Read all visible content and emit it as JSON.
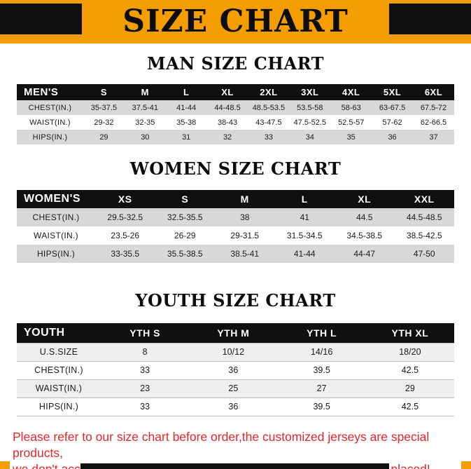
{
  "page": {
    "title": "SIZE CHART",
    "footer_line1": "Please refer to our size chart before order,the customized jerseys are special products,",
    "footer_line2": "we don't accept cancel, change, teturn or refund after order has been placed!"
  },
  "colors": {
    "accent_orange": "#F49D00",
    "header_black": "#101010",
    "row_gray": "#D8D8D8",
    "footer_red": "#E4262C"
  },
  "tables": [
    {
      "heading": "MAN SIZE CHART",
      "header": [
        "MEN'S",
        "S",
        "M",
        "L",
        "XL",
        "2XL",
        "3XL",
        "4XL",
        "5XL",
        "6XL"
      ],
      "rows": [
        [
          "CHEST(IN.)",
          "35-37.5",
          "37.5-41",
          "41-44",
          "44-48.5",
          "48.5-53.5",
          "53.5-58",
          "58-63",
          "63-67.5",
          "67.5-72"
        ],
        [
          "WAIST(IN.)",
          "29-32",
          "32-35",
          "35-38",
          "38-43",
          "43-47.5",
          "47.5-52.5",
          "52.5-57",
          "57-62",
          "62-66.5"
        ],
        [
          "HIPS(IN.)",
          "29",
          "30",
          "31",
          "32",
          "33",
          "34",
          "35",
          "36",
          "37"
        ]
      ]
    },
    {
      "heading": "WOMEN SIZE CHART",
      "header": [
        "WOMEN'S",
        "XS",
        "S",
        "M",
        "L",
        "XL",
        "XXL"
      ],
      "rows": [
        [
          "CHEST(IN.)",
          "29.5-32.5",
          "32.5-35.5",
          "38",
          "41",
          "44.5",
          "44.5-48.5"
        ],
        [
          "WAIST(IN.)",
          "23.5-26",
          "26-29",
          "29-31.5",
          "31.5-34.5",
          "34.5-38.5",
          "38.5-42.5"
        ],
        [
          "HIPS(IN.)",
          "33-35.5",
          "35.5-38.5",
          "38.5-41",
          "41-44",
          "44-47",
          "47-50"
        ]
      ]
    },
    {
      "heading": "YOUTH SIZE CHART",
      "header": [
        "YOUTH",
        "YTH S",
        "YTH M",
        "YTH L",
        "YTH XL"
      ],
      "rows": [
        [
          "U.S.SIZE",
          "8",
          "10/12",
          "14/16",
          "18/20"
        ],
        [
          "CHEST(IN.)",
          "33",
          "36",
          "39.5",
          "42.5"
        ],
        [
          "WAIST(IN.)",
          "23",
          "25",
          "27",
          "29"
        ],
        [
          "HIPS(IN.)",
          "33",
          "36",
          "39.5",
          "42.5"
        ]
      ]
    }
  ]
}
